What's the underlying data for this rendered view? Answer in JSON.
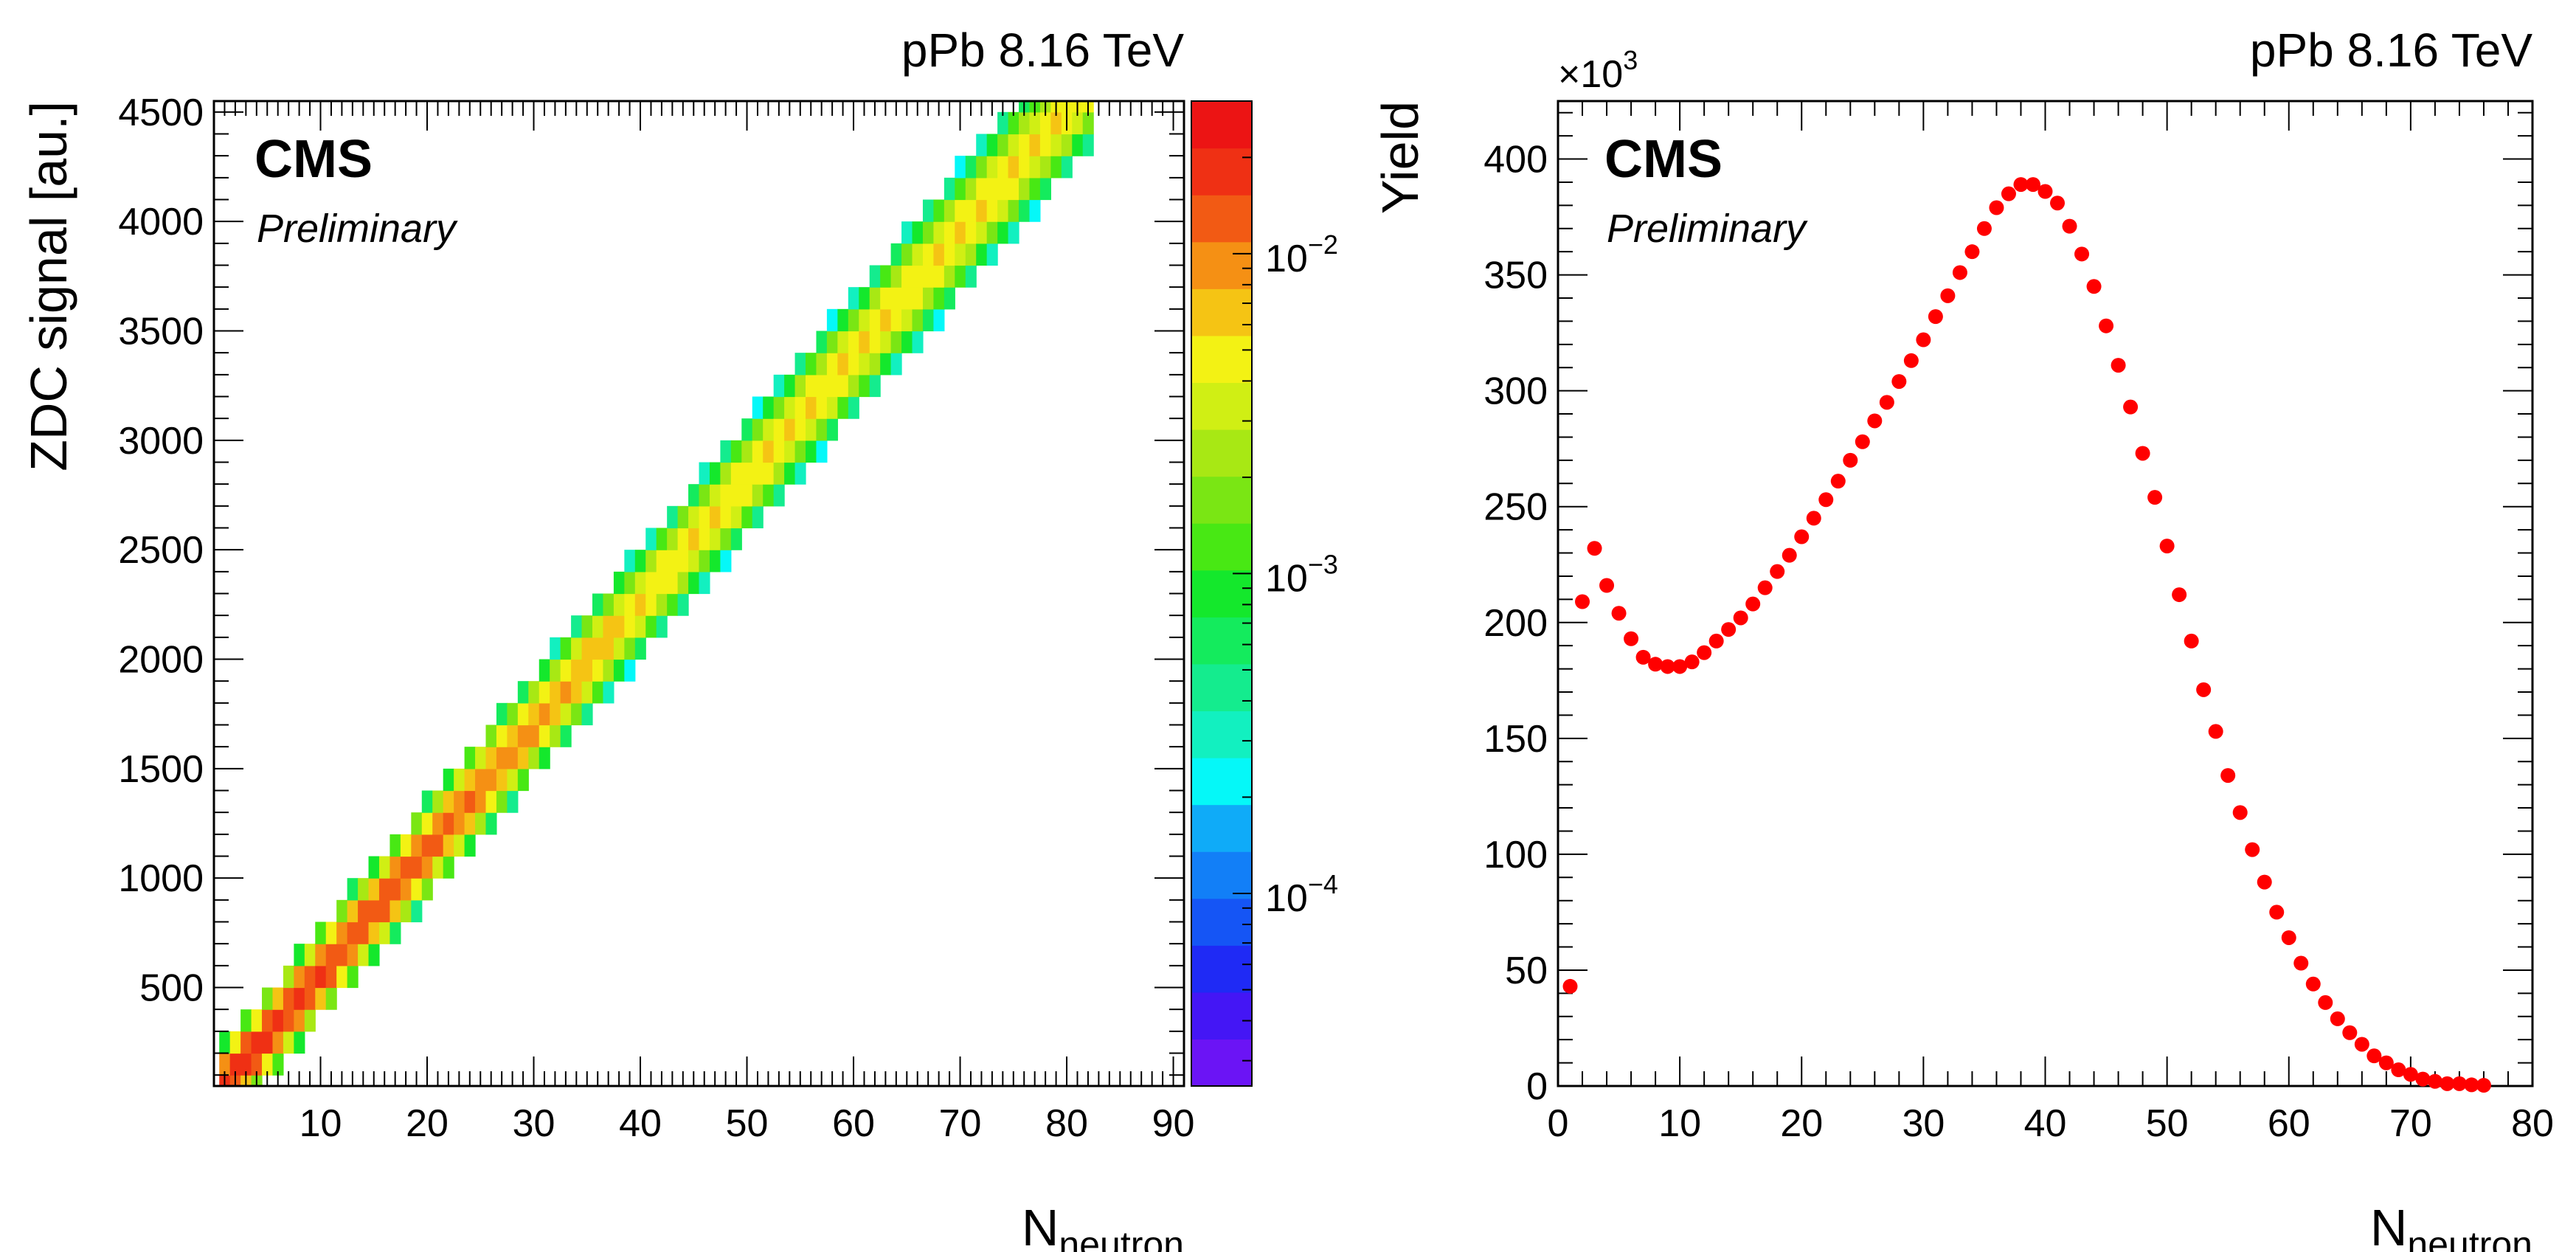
{
  "chart_data": [
    {
      "type": "heatmap",
      "energy_label": "pPb 8.16 TeV",
      "experiment": "CMS",
      "status": "Preliminary",
      "xlabel_main": "N",
      "xlabel_sub": "neutron",
      "ylabel": "ZDC signal [au.]",
      "zlabel": "Yield",
      "xlim": [
        0,
        91
      ],
      "ylim": [
        50,
        4550
      ],
      "zlim": [
        2.5e-05,
        0.03
      ],
      "zscale": "log",
      "x_ticks": [
        10,
        20,
        30,
        40,
        50,
        60,
        70,
        80,
        90
      ],
      "y_ticks": [
        500,
        1000,
        1500,
        2000,
        2500,
        3000,
        3500,
        4000,
        4500
      ],
      "z_ticks": [
        {
          "value": 0.0001,
          "base": "10",
          "exp": "−4"
        },
        {
          "value": 0.001,
          "base": "10",
          "exp": "−3"
        },
        {
          "value": 0.01,
          "base": "10",
          "exp": "−2"
        }
      ],
      "band": {
        "slope_per_neutron": 56.5,
        "intercept": 0,
        "bin_width_x": 1,
        "bin_height_y": 100,
        "half_width_y": 200,
        "x_range": [
          1,
          82
        ],
        "peak_yield": 0.02
      },
      "palette": [
        "#6b14f5",
        "#4416f5",
        "#1f2af5",
        "#1555f5",
        "#127ff7",
        "#0fabf8",
        "#05f8f8",
        "#12f0c0",
        "#14ec8e",
        "#14eb5d",
        "#14e82c",
        "#48e814",
        "#7ae614",
        "#a8e814",
        "#d0ef14",
        "#f3f214",
        "#f5c414",
        "#f59014",
        "#f25a14",
        "#ef3014",
        "#ec1414"
      ]
    },
    {
      "type": "scatter",
      "energy_label": "pPb 8.16 TeV",
      "experiment": "CMS",
      "status": "Preliminary",
      "xlabel_main": "N",
      "xlabel_sub": "neutron",
      "ylabel": "",
      "y_multiplier_base": "×10",
      "y_multiplier_exp": "3",
      "xlim": [
        0,
        80
      ],
      "ylim": [
        0,
        425
      ],
      "x_ticks": [
        0,
        10,
        20,
        30,
        40,
        50,
        60,
        70,
        80
      ],
      "y_ticks": [
        0,
        50,
        100,
        150,
        200,
        250,
        300,
        350,
        400
      ],
      "marker_color": "#ff0000",
      "series": [
        {
          "name": "Yield",
          "x": [
            1,
            2,
            3,
            4,
            5,
            6,
            7,
            8,
            9,
            10,
            11,
            12,
            13,
            14,
            15,
            16,
            17,
            18,
            19,
            20,
            21,
            22,
            23,
            24,
            25,
            26,
            27,
            28,
            29,
            30,
            31,
            32,
            33,
            34,
            35,
            36,
            37,
            38,
            39,
            40,
            41,
            42,
            43,
            44,
            45,
            46,
            47,
            48,
            49,
            50,
            51,
            52,
            53,
            54,
            55,
            56,
            57,
            58,
            59,
            60,
            61,
            62,
            63,
            64,
            65,
            66,
            67,
            68,
            69,
            70,
            71,
            72,
            73,
            74,
            75,
            76
          ],
          "y": [
            43,
            209,
            232,
            216,
            204,
            193,
            185,
            182,
            181,
            181,
            183,
            187,
            192,
            197,
            202,
            208,
            215,
            222,
            229,
            237,
            245,
            253,
            261,
            270,
            278,
            287,
            295,
            304,
            313,
            322,
            332,
            341,
            351,
            360,
            370,
            379,
            385,
            389,
            389,
            386,
            381,
            371,
            359,
            345,
            328,
            311,
            293,
            273,
            254,
            233,
            212,
            192,
            171,
            153,
            134,
            118,
            102,
            88,
            75,
            64,
            53,
            44,
            36,
            29,
            23,
            18,
            13,
            10,
            7,
            5,
            3,
            2,
            1,
            1,
            0.5,
            0.3
          ]
        }
      ]
    }
  ]
}
